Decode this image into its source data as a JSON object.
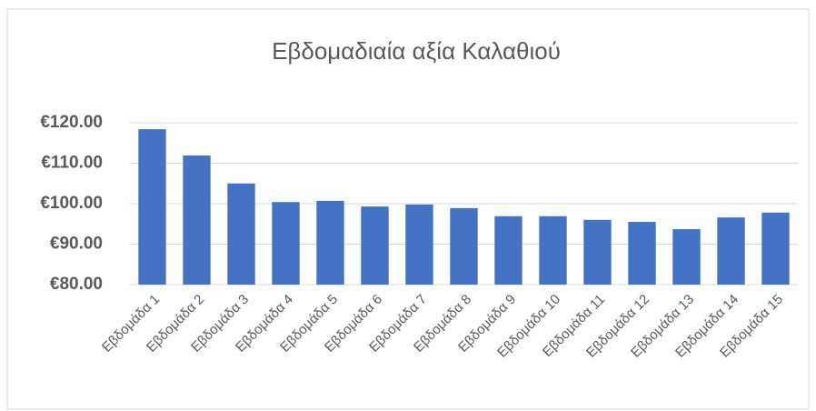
{
  "chart_data": {
    "type": "bar",
    "title": "Εβδομαδιαία αξία Καλαθιού",
    "categories": [
      "Εβδομάδα 1",
      "Εβδομάδα 2",
      "Εβδομάδα 3",
      "Εβδομάδα 4",
      "Εβδομάδα 5",
      "Εβδομάδα 6",
      "Εβδομάδα 7",
      "Εβδομάδα 8",
      "Εβδομάδα 9",
      "Εβδομάδα 10",
      "Εβδομάδα 11",
      "Εβδομάδα 12",
      "Εβδομάδα 13",
      "Εβδομάδα 14",
      "Εβδομάδα 15"
    ],
    "values": [
      118.4,
      111.9,
      105.0,
      100.4,
      100.7,
      99.3,
      99.8,
      98.9,
      96.9,
      96.9,
      96.0,
      95.5,
      93.7,
      96.6,
      97.8
    ],
    "color": "#4472c4",
    "ylim": [
      80,
      120
    ],
    "yticks": [
      {
        "value": 80,
        "label": "€80.00"
      },
      {
        "value": 90,
        "label": "€90.00"
      },
      {
        "value": 100,
        "label": "€100.00"
      },
      {
        "value": 110,
        "label": "€110.00"
      },
      {
        "value": 120,
        "label": "€120.00"
      }
    ],
    "grid": true
  }
}
